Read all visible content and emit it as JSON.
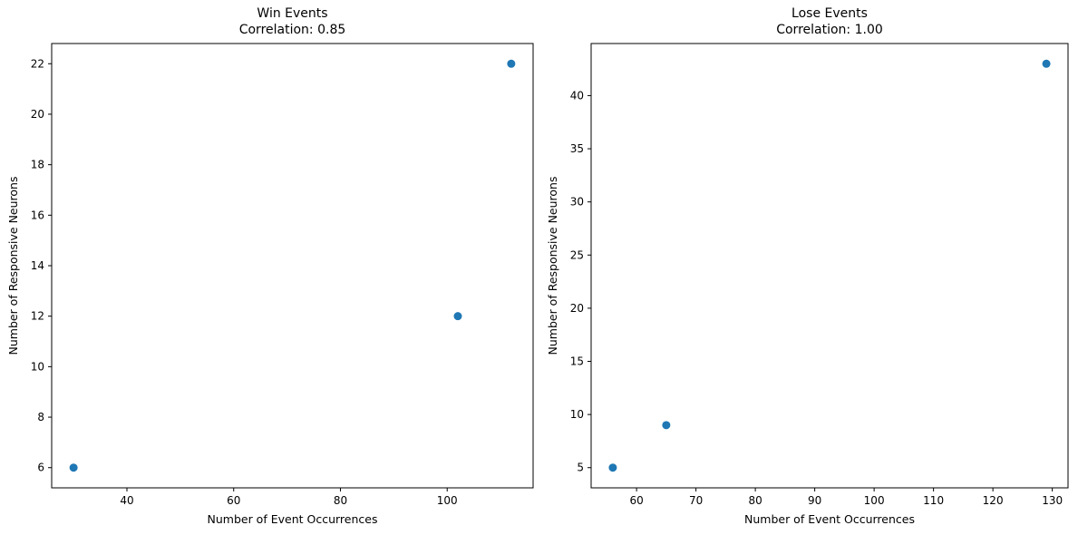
{
  "colors": {
    "marker": "#1f77b4",
    "axes": "#000000",
    "background": "#ffffff"
  },
  "chart_data": [
    {
      "type": "scatter",
      "title": "Win Events\nCorrelation: 0.85",
      "title_lines": [
        "Win Events",
        "Correlation: 0.85"
      ],
      "xlabel": "Number of Event Occurrences",
      "ylabel": "Number of Responsive Neurons",
      "xlim": [
        25.9,
        116.1
      ],
      "ylim": [
        5.2,
        22.8
      ],
      "xticks": [
        40,
        60,
        80,
        100
      ],
      "yticks": [
        6,
        8,
        10,
        12,
        14,
        16,
        18,
        20,
        22
      ],
      "grid": false,
      "series": [
        {
          "x": [
            30,
            102,
            112
          ],
          "y": [
            6,
            12,
            22
          ]
        }
      ]
    },
    {
      "type": "scatter",
      "title": "Lose Events\nCorrelation: 1.00",
      "title_lines": [
        "Lose Events",
        "Correlation: 1.00"
      ],
      "xlabel": "Number of Event Occurrences",
      "ylabel": "Number of Responsive Neurons",
      "xlim": [
        52.35,
        132.65
      ],
      "ylim": [
        3.1,
        44.9
      ],
      "xticks": [
        60,
        70,
        80,
        90,
        100,
        110,
        120,
        130
      ],
      "yticks": [
        5,
        10,
        15,
        20,
        25,
        30,
        35,
        40
      ],
      "grid": false,
      "series": [
        {
          "x": [
            56,
            65,
            129
          ],
          "y": [
            5,
            9,
            43
          ]
        }
      ]
    }
  ]
}
